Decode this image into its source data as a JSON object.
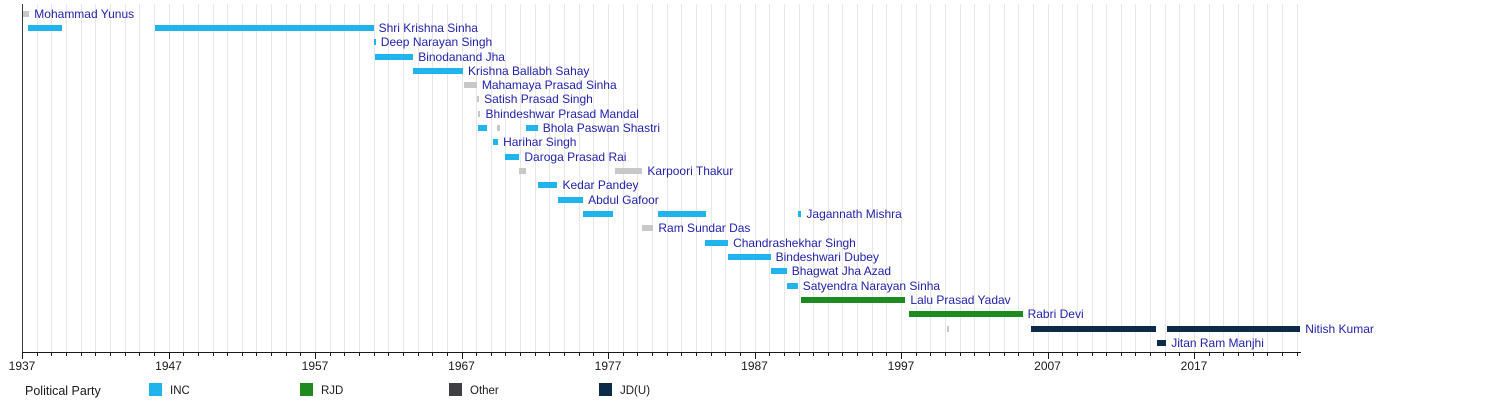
{
  "legend": {
    "label": "Political Party",
    "items": [
      {
        "name": "INC",
        "color": "#1fb4ec"
      },
      {
        "name": "RJD",
        "color": "#1e8a20"
      },
      {
        "name": "Other",
        "color": "#3e3e43"
      },
      {
        "name": "JD(U)",
        "color": "#0e2a4a"
      }
    ]
  },
  "chart_data": {
    "type": "gantt",
    "title": "",
    "xlabel": "",
    "ylabel": "",
    "x_axis": {
      "range": [
        1937,
        2024.3
      ],
      "major_ticks": [
        1937,
        1947,
        1957,
        1967,
        1977,
        1987,
        1997,
        2007,
        2017
      ],
      "minor_tick_every_years": 1,
      "grid": true
    },
    "legend_position": "bottom",
    "party_bar_colors": {
      "INC": "#1fb4ec",
      "RJD": "#1e8a20",
      "Other": "#c8c8c8",
      "JDU": "#0e2a4a"
    },
    "rows": [
      {
        "name": "Mohammad Yunus",
        "party": "Other",
        "terms": [
          [
            1937.05,
            1937.5
          ]
        ]
      },
      {
        "name": "Shri Krishna Sinha",
        "party": "INC",
        "terms": [
          [
            1937.4,
            1939.75
          ],
          [
            1946.1,
            1961.0
          ]
        ]
      },
      {
        "name": "Deep Narayan Singh",
        "party": "INC",
        "terms": [
          [
            1961.0,
            1961.15
          ]
        ]
      },
      {
        "name": "Binodanand Jha",
        "party": "INC",
        "terms": [
          [
            1961.1,
            1963.7
          ]
        ]
      },
      {
        "name": "Krishna Ballabh Sahay",
        "party": "INC",
        "terms": [
          [
            1963.7,
            1967.1
          ]
        ]
      },
      {
        "name": "Mahamaya Prasad Sinha",
        "party": "Other",
        "terms": [
          [
            1967.15,
            1968.05
          ]
        ]
      },
      {
        "name": "Satish Prasad Singh",
        "party": "Other",
        "terms": [
          [
            1968.05,
            1968.2
          ]
        ]
      },
      {
        "name": "Bhindeshwar Prasad Mandal",
        "party": "Other",
        "terms": [
          [
            1968.1,
            1968.3
          ]
        ]
      },
      {
        "name": "Bhola Paswan Shastri",
        "party": "INC",
        "terms": [
          [
            1968.15,
            1968.75
          ],
          [
            1969.45,
            1969.6
          ],
          [
            1971.4,
            1972.2
          ]
        ],
        "term_parties": [
          "INC",
          "Other",
          "INC"
        ]
      },
      {
        "name": "Harihar Singh",
        "party": "INC",
        "terms": [
          [
            1969.15,
            1969.5
          ]
        ]
      },
      {
        "name": "Daroga Prasad Rai",
        "party": "INC",
        "terms": [
          [
            1970.0,
            1970.95
          ]
        ]
      },
      {
        "name": "Karpoori Thakur",
        "party": "Other",
        "terms": [
          [
            1970.95,
            1971.4
          ],
          [
            1977.45,
            1979.35
          ]
        ]
      },
      {
        "name": "Kedar Pandey",
        "party": "INC",
        "terms": [
          [
            1972.2,
            1973.55
          ]
        ]
      },
      {
        "name": "Abdul Gafoor",
        "party": "INC",
        "terms": [
          [
            1973.55,
            1975.3
          ]
        ]
      },
      {
        "name": "Jagannath Mishra",
        "party": "INC",
        "terms": [
          [
            1975.3,
            1977.35
          ],
          [
            1980.4,
            1983.7
          ],
          [
            1989.95,
            1990.2
          ]
        ]
      },
      {
        "name": "Ram Sundar Das",
        "party": "Other",
        "terms": [
          [
            1979.35,
            1980.1
          ]
        ]
      },
      {
        "name": "Chandrashekhar Singh",
        "party": "INC",
        "terms": [
          [
            1983.6,
            1985.2
          ]
        ]
      },
      {
        "name": "Bindeshwari Dubey",
        "party": "INC",
        "terms": [
          [
            1985.2,
            1988.1
          ]
        ]
      },
      {
        "name": "Bhagwat Jha Azad",
        "party": "INC",
        "terms": [
          [
            1988.1,
            1989.2
          ]
        ]
      },
      {
        "name": "Satyendra Narayan Sinha",
        "party": "INC",
        "terms": [
          [
            1989.2,
            1989.95
          ]
        ]
      },
      {
        "name": "Lalu Prasad Yadav",
        "party": "RJD",
        "terms": [
          [
            1990.2,
            1997.3
          ]
        ]
      },
      {
        "name": "Rabri Devi",
        "party": "RJD",
        "terms": [
          [
            1997.55,
            2005.3
          ]
        ]
      },
      {
        "name": "Nitish Kumar",
        "party": "JDU",
        "terms": [
          [
            2000.15,
            2000.3
          ],
          [
            2005.9,
            2014.4
          ],
          [
            2015.15,
            2024.25
          ]
        ],
        "term_parties": [
          "Other",
          "JDU",
          "JDU"
        ]
      },
      {
        "name": "Jitan Ram Manjhi",
        "party": "JDU",
        "terms": [
          [
            2014.45,
            2015.1
          ]
        ]
      }
    ]
  }
}
